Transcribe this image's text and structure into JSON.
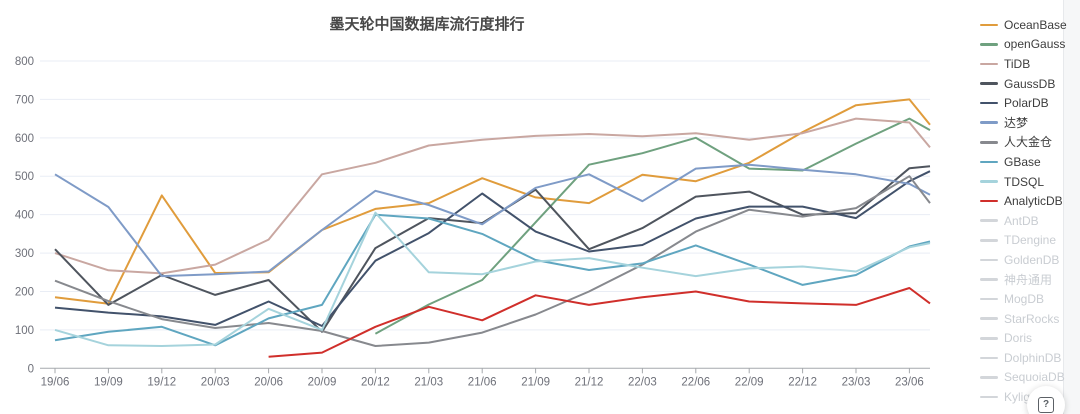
{
  "header": {
    "title": "墨天轮中国数据库流行度排行"
  },
  "help_button": {
    "label": "?"
  },
  "colors": {
    "grid": "#e9edf5",
    "axis_line": "#a6a9ad",
    "axis_label": "#6e7079",
    "title_text": "#474747",
    "legend_text_active": "#3d3d3d",
    "legend_text_disabled": "#c9cdd2",
    "legend_swatch_disabled": "#d3d6da"
  },
  "chart_data": {
    "type": "line",
    "title": "墨天轮中国数据库流行度排行",
    "xlabel": "",
    "ylabel": "",
    "ylim": [
      0,
      800
    ],
    "y_interval": 100,
    "y_tick_labels": [
      "0",
      "100",
      "200",
      "300",
      "400",
      "500",
      "600",
      "700",
      "800"
    ],
    "grid": true,
    "legend_position": "right",
    "x": [
      "19/06",
      "19/09",
      "19/12",
      "20/03",
      "20/06",
      "20/09",
      "20/12",
      "21/03",
      "21/06",
      "21/09",
      "21/12",
      "22/03",
      "22/06",
      "22/09",
      "22/12",
      "23/03",
      "23/06"
    ],
    "note_last_point": "series extend one extra month past the 23/06 tick; 18th value is that terminal point",
    "series": [
      {
        "name": "OceanBase",
        "color": "#e09c3c",
        "values": [
          185,
          168,
          450,
          248,
          250,
          360,
          415,
          430,
          495,
          445,
          430,
          504,
          487,
          535,
          615,
          685,
          700,
          634
        ]
      },
      {
        "name": "openGauss",
        "color": "#6fa17f",
        "values": [
          null,
          null,
          null,
          null,
          null,
          null,
          90,
          166,
          230,
          380,
          530,
          560,
          600,
          520,
          515,
          585,
          650,
          620
        ]
      },
      {
        "name": "TiDB",
        "color": "#c9a7a1",
        "values": [
          300,
          255,
          247,
          270,
          335,
          505,
          535,
          580,
          595,
          605,
          610,
          604,
          612,
          595,
          612,
          650,
          640,
          575
        ]
      },
      {
        "name": "GaussDB",
        "color": "#4f555e",
        "values": [
          310,
          165,
          243,
          191,
          230,
          95,
          313,
          391,
          378,
          465,
          310,
          365,
          447,
          460,
          400,
          404,
          521,
          526
        ]
      },
      {
        "name": "PolarDB",
        "color": "#42526b",
        "values": [
          158,
          145,
          135,
          113,
          174,
          110,
          280,
          352,
          455,
          356,
          304,
          321,
          390,
          421,
          421,
          391,
          487,
          513
        ]
      },
      {
        "name": "达梦",
        "color": "#7f9bc7",
        "values": [
          505,
          420,
          240,
          245,
          252,
          360,
          462,
          425,
          375,
          470,
          505,
          435,
          520,
          530,
          517,
          505,
          480,
          452
        ]
      },
      {
        "name": "人大金仓",
        "color": "#87898e",
        "values": [
          228,
          175,
          128,
          105,
          118,
          97,
          58,
          67,
          93,
          140,
          200,
          270,
          356,
          413,
          395,
          417,
          500,
          430
        ]
      },
      {
        "name": "GBase",
        "color": "#5fa6c0",
        "values": [
          73,
          95,
          108,
          60,
          130,
          165,
          400,
          390,
          350,
          282,
          256,
          273,
          320,
          270,
          217,
          243,
          317,
          330
        ]
      },
      {
        "name": "TDSQL",
        "color": "#a5d3dc",
        "values": [
          100,
          60,
          58,
          62,
          155,
          100,
          405,
          250,
          245,
          278,
          287,
          262,
          240,
          260,
          265,
          252,
          315,
          326
        ]
      },
      {
        "name": "AnalyticDB",
        "color": "#d02f2b",
        "values": [
          null,
          null,
          null,
          null,
          30,
          41,
          108,
          160,
          125,
          190,
          165,
          185,
          200,
          174,
          169,
          165,
          209,
          169
        ]
      }
    ],
    "legend_disabled_items": [
      "AntDB",
      "TDengine",
      "GoldenDB",
      "神舟通用",
      "MogDB",
      "StarRocks",
      "Doris",
      "DolphinDB",
      "SequoiaDB",
      "Kyligence"
    ]
  }
}
